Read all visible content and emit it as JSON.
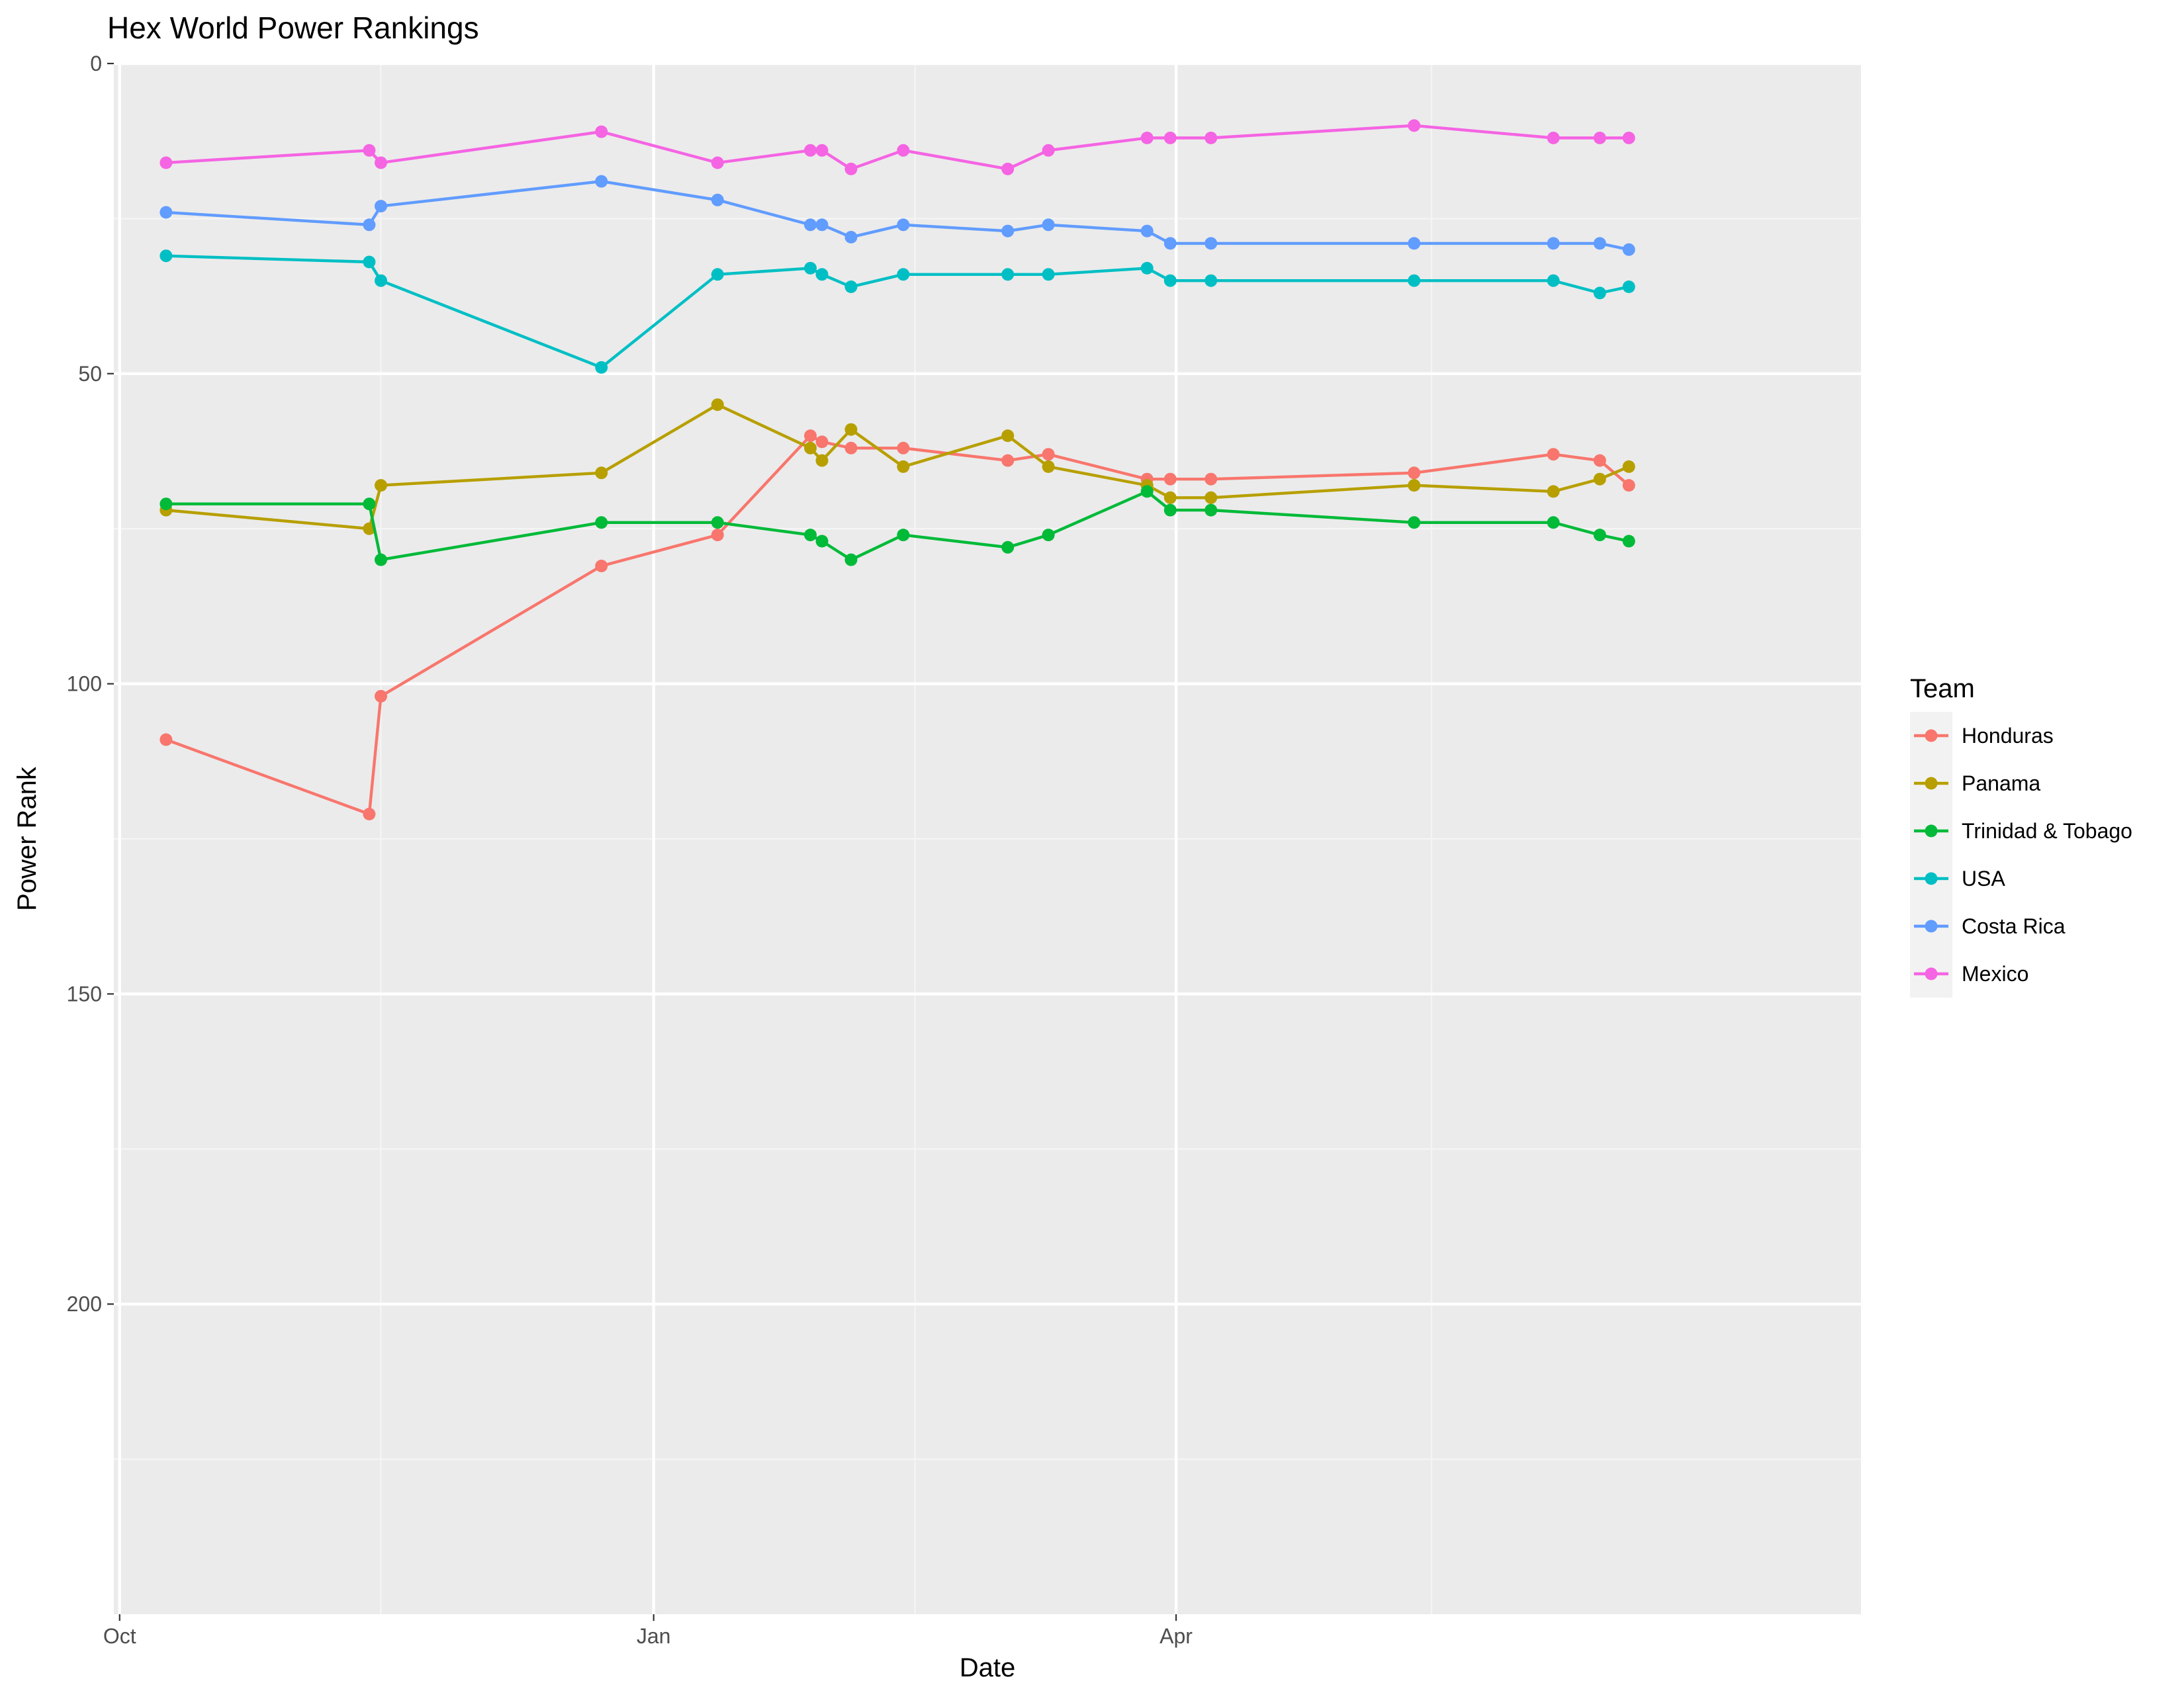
{
  "chart_data": {
    "type": "line",
    "title": "Hex World Power Rankings",
    "xlabel": "Date",
    "ylabel": "Power Rank",
    "y_reversed": true,
    "ylim": [
      0,
      250
    ],
    "xlim": [
      "2016-09-30",
      "2017-07-28"
    ],
    "y_ticks": [
      0,
      50,
      100,
      150,
      200
    ],
    "x_ticks": [
      {
        "label": "Oct",
        "date": "2016-10-01"
      },
      {
        "label": "Jan",
        "date": "2017-01-01"
      },
      {
        "label": "Apr",
        "date": "2017-04-01"
      }
    ],
    "x_minor_ticks": [
      "2016-11-15",
      "2017-02-15",
      "2017-05-15"
    ],
    "grid": true,
    "legend_title": "Team",
    "legend_position": "right",
    "series": [
      {
        "name": "Honduras",
        "color": "#F8766D",
        "points": [
          [
            "2016-10-09",
            109
          ],
          [
            "2016-11-13",
            121
          ],
          [
            "2016-11-15",
            102
          ],
          [
            "2016-12-23",
            81
          ],
          [
            "2017-01-12",
            76
          ],
          [
            "2017-01-28",
            60
          ],
          [
            "2017-01-30",
            61
          ],
          [
            "2017-02-04",
            62
          ],
          [
            "2017-02-13",
            62
          ],
          [
            "2017-03-03",
            64
          ],
          [
            "2017-03-10",
            63
          ],
          [
            "2017-03-27",
            67
          ],
          [
            "2017-03-31",
            67
          ],
          [
            "2017-04-07",
            67
          ],
          [
            "2017-05-12",
            66
          ],
          [
            "2017-06-05",
            63
          ],
          [
            "2017-06-13",
            64
          ],
          [
            "2017-06-18",
            68
          ]
        ]
      },
      {
        "name": "Panama",
        "color": "#B79F00",
        "points": [
          [
            "2016-10-09",
            72
          ],
          [
            "2016-11-13",
            75
          ],
          [
            "2016-11-15",
            68
          ],
          [
            "2016-12-23",
            66
          ],
          [
            "2017-01-12",
            55
          ],
          [
            "2017-01-28",
            62
          ],
          [
            "2017-01-30",
            64
          ],
          [
            "2017-02-04",
            59
          ],
          [
            "2017-02-13",
            65
          ],
          [
            "2017-03-03",
            60
          ],
          [
            "2017-03-10",
            65
          ],
          [
            "2017-03-27",
            68
          ],
          [
            "2017-03-31",
            70
          ],
          [
            "2017-04-07",
            70
          ],
          [
            "2017-05-12",
            68
          ],
          [
            "2017-06-05",
            69
          ],
          [
            "2017-06-13",
            67
          ],
          [
            "2017-06-18",
            65
          ]
        ]
      },
      {
        "name": "Trinidad & Tobago",
        "color": "#00BA38",
        "points": [
          [
            "2016-10-09",
            71
          ],
          [
            "2016-11-13",
            71
          ],
          [
            "2016-11-15",
            80
          ],
          [
            "2016-12-23",
            74
          ],
          [
            "2017-01-12",
            74
          ],
          [
            "2017-01-28",
            76
          ],
          [
            "2017-01-30",
            77
          ],
          [
            "2017-02-04",
            80
          ],
          [
            "2017-02-13",
            76
          ],
          [
            "2017-03-03",
            78
          ],
          [
            "2017-03-10",
            76
          ],
          [
            "2017-03-27",
            69
          ],
          [
            "2017-03-31",
            72
          ],
          [
            "2017-04-07",
            72
          ],
          [
            "2017-05-12",
            74
          ],
          [
            "2017-06-05",
            74
          ],
          [
            "2017-06-13",
            76
          ],
          [
            "2017-06-18",
            77
          ]
        ]
      },
      {
        "name": "USA",
        "color": "#00BFC4",
        "points": [
          [
            "2016-10-09",
            31
          ],
          [
            "2016-11-13",
            32
          ],
          [
            "2016-11-15",
            35
          ],
          [
            "2016-12-23",
            49
          ],
          [
            "2017-01-12",
            34
          ],
          [
            "2017-01-28",
            33
          ],
          [
            "2017-01-30",
            34
          ],
          [
            "2017-02-04",
            36
          ],
          [
            "2017-02-13",
            34
          ],
          [
            "2017-03-03",
            34
          ],
          [
            "2017-03-10",
            34
          ],
          [
            "2017-03-27",
            33
          ],
          [
            "2017-03-31",
            35
          ],
          [
            "2017-04-07",
            35
          ],
          [
            "2017-05-12",
            35
          ],
          [
            "2017-06-05",
            35
          ],
          [
            "2017-06-13",
            37
          ],
          [
            "2017-06-18",
            36
          ]
        ]
      },
      {
        "name": "Costa Rica",
        "color": "#619CFF",
        "points": [
          [
            "2016-10-09",
            24
          ],
          [
            "2016-11-13",
            26
          ],
          [
            "2016-11-15",
            23
          ],
          [
            "2016-12-23",
            19
          ],
          [
            "2017-01-12",
            22
          ],
          [
            "2017-01-28",
            26
          ],
          [
            "2017-01-30",
            26
          ],
          [
            "2017-02-04",
            28
          ],
          [
            "2017-02-13",
            26
          ],
          [
            "2017-03-03",
            27
          ],
          [
            "2017-03-10",
            26
          ],
          [
            "2017-03-27",
            27
          ],
          [
            "2017-03-31",
            29
          ],
          [
            "2017-04-07",
            29
          ],
          [
            "2017-05-12",
            29
          ],
          [
            "2017-06-05",
            29
          ],
          [
            "2017-06-13",
            29
          ],
          [
            "2017-06-18",
            30
          ]
        ]
      },
      {
        "name": "Mexico",
        "color": "#F564E3",
        "points": [
          [
            "2016-10-09",
            16
          ],
          [
            "2016-11-13",
            14
          ],
          [
            "2016-11-15",
            16
          ],
          [
            "2016-12-23",
            11
          ],
          [
            "2017-01-12",
            16
          ],
          [
            "2017-01-28",
            14
          ],
          [
            "2017-01-30",
            14
          ],
          [
            "2017-02-04",
            17
          ],
          [
            "2017-02-13",
            14
          ],
          [
            "2017-03-03",
            17
          ],
          [
            "2017-03-10",
            14
          ],
          [
            "2017-03-27",
            12
          ],
          [
            "2017-03-31",
            12
          ],
          [
            "2017-04-07",
            12
          ],
          [
            "2017-05-12",
            10
          ],
          [
            "2017-06-05",
            12
          ],
          [
            "2017-06-13",
            12
          ],
          [
            "2017-06-18",
            12
          ]
        ]
      }
    ],
    "colors": {
      "panel_background": "#EBEBEB",
      "grid_major": "#FFFFFF",
      "grid_minor": "#F5F5F5",
      "legend_key_background": "#F2F2F2"
    }
  }
}
